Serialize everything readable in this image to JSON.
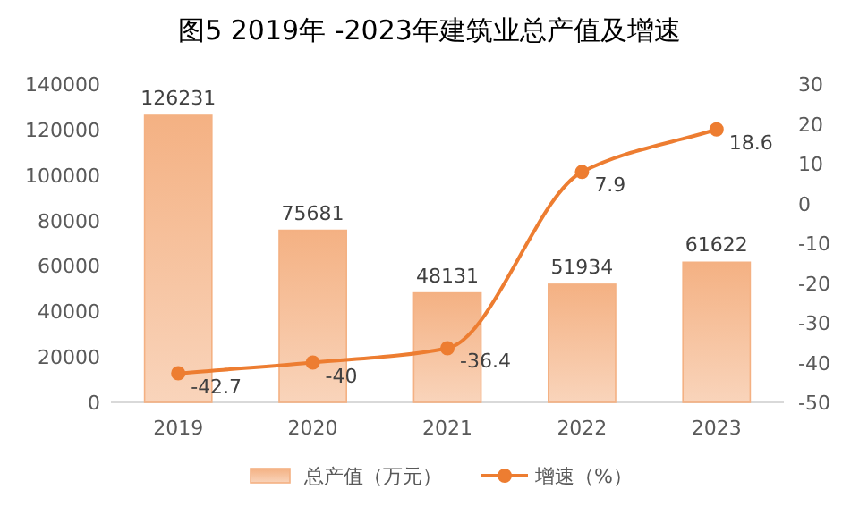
{
  "chart_data": {
    "type": "bar",
    "title": "图5 2019年 -2023年建筑业总产值及增速",
    "categories": [
      "2019",
      "2020",
      "2021",
      "2022",
      "2023"
    ],
    "series": [
      {
        "name": "总产值（万元）",
        "color": "#f4b183",
        "values": [
          126231,
          75681,
          48131,
          51934,
          61622
        ]
      },
      {
        "name": "增速（%）",
        "type": "line",
        "color": "#ed7d31",
        "axis": "y2",
        "marker": "circle",
        "values": [
          -42.7,
          -40,
          -36.4,
          7.9,
          18.6
        ]
      }
    ],
    "ylim": [
      0,
      140000
    ],
    "yticks": [
      0,
      20000,
      40000,
      60000,
      80000,
      100000,
      120000,
      140000
    ],
    "y2lim": [
      -50,
      30
    ],
    "y2ticks": [
      -50,
      -40,
      -30,
      -20,
      -10,
      0,
      10,
      20,
      30
    ],
    "data_labels": true,
    "legend": "bottom"
  }
}
